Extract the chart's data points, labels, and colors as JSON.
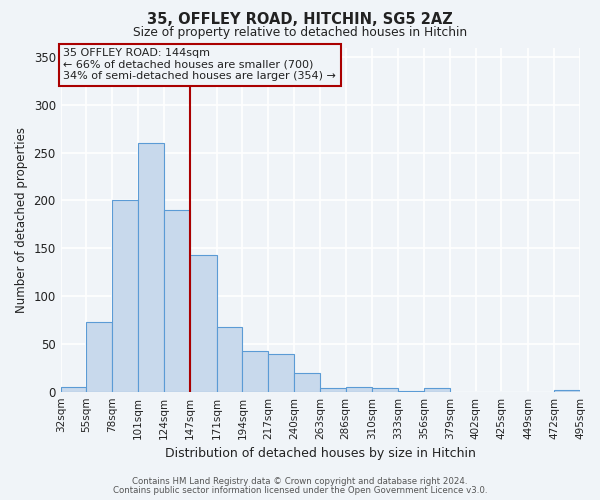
{
  "title1": "35, OFFLEY ROAD, HITCHIN, SG5 2AZ",
  "title2": "Size of property relative to detached houses in Hitchin",
  "xlabel": "Distribution of detached houses by size in Hitchin",
  "ylabel": "Number of detached properties",
  "bin_edges": [
    32,
    55,
    78,
    101,
    124,
    147,
    171,
    194,
    217,
    240,
    263,
    286,
    310,
    333,
    356,
    379,
    402,
    425,
    449,
    472,
    495
  ],
  "bar_heights": [
    5,
    73,
    200,
    260,
    190,
    143,
    68,
    43,
    39,
    20,
    4,
    5,
    4,
    1,
    4,
    0,
    0,
    0,
    0,
    2
  ],
  "tick_labels": [
    "32sqm",
    "55sqm",
    "78sqm",
    "101sqm",
    "124sqm",
    "147sqm",
    "171sqm",
    "194sqm",
    "217sqm",
    "240sqm",
    "263sqm",
    "286sqm",
    "310sqm",
    "333sqm",
    "356sqm",
    "379sqm",
    "402sqm",
    "425sqm",
    "449sqm",
    "472sqm",
    "495sqm"
  ],
  "bar_facecolor": "#c8d9ec",
  "bar_edgecolor": "#5b9bd5",
  "vline_x": 147,
  "vline_color": "#aa0000",
  "annotation_title": "35 OFFLEY ROAD: 144sqm",
  "annotation_line1": "← 66% of detached houses are smaller (700)",
  "annotation_line2": "34% of semi-detached houses are larger (354) →",
  "annotation_box_edgecolor": "#aa0000",
  "ylim": [
    0,
    360
  ],
  "yticks": [
    0,
    50,
    100,
    150,
    200,
    250,
    300,
    350
  ],
  "footer1": "Contains HM Land Registry data © Crown copyright and database right 2024.",
  "footer2": "Contains public sector information licensed under the Open Government Licence v3.0.",
  "bg_color": "#f0f4f8",
  "grid_color": "#ffffff",
  "font_color": "#222222"
}
